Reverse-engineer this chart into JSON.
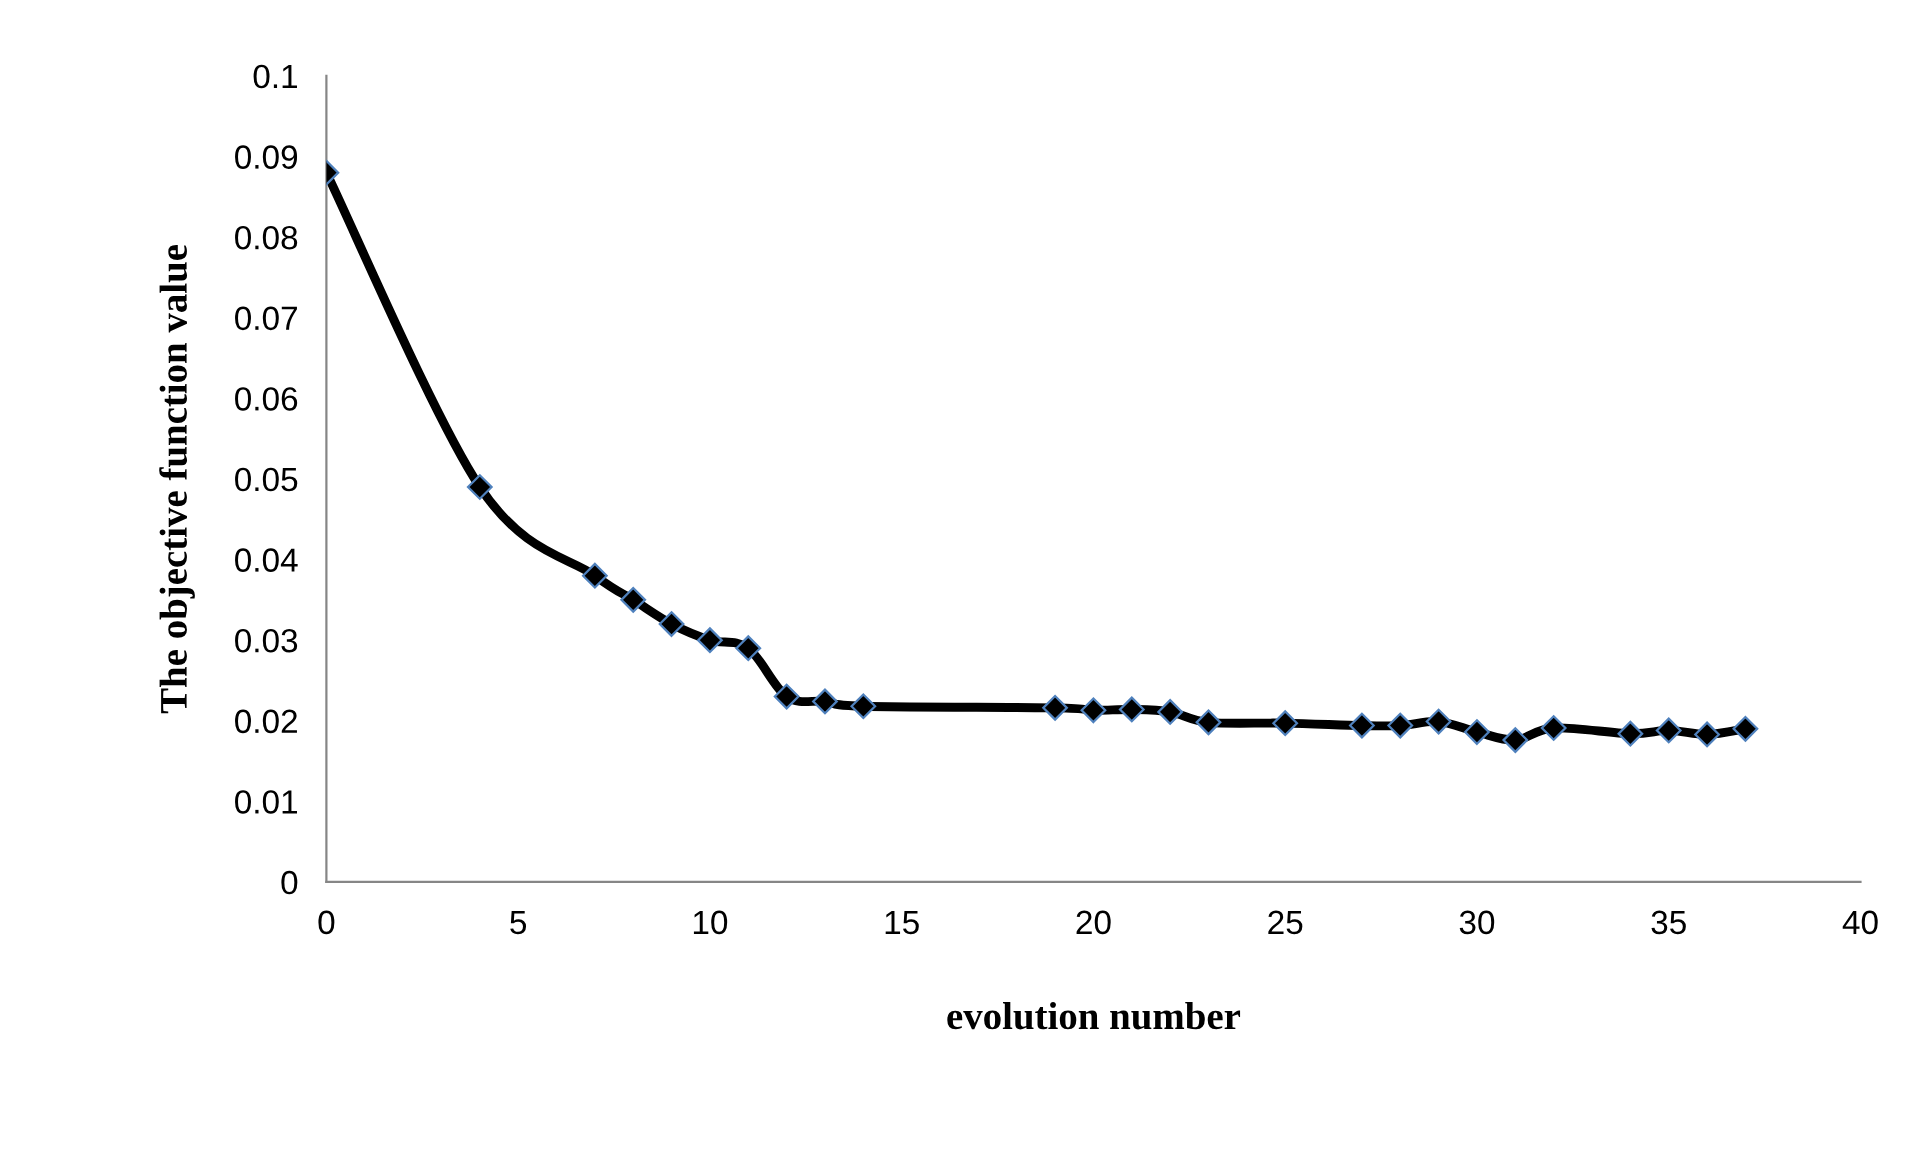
{
  "chart_data": {
    "type": "line",
    "xlabel": "evolution number",
    "ylabel": "The objective function value",
    "x": [
      0,
      4,
      7,
      8,
      9,
      10,
      11,
      12,
      13,
      14,
      19,
      20,
      21,
      22,
      23,
      25,
      27,
      28,
      29,
      30,
      31,
      32,
      34,
      35,
      36,
      37
    ],
    "series": [
      {
        "color": "#000000",
        "values": [
          0.088,
          0.049,
          0.038,
          0.035,
          0.032,
          0.03,
          0.029,
          0.023,
          0.0224,
          0.0218,
          0.0216,
          0.0213,
          0.0214,
          0.0211,
          0.0198,
          0.0197,
          0.0194,
          0.0194,
          0.0199,
          0.0186,
          0.0176,
          0.0191,
          0.0184,
          0.0188,
          0.0183,
          0.019
        ]
      }
    ],
    "xlim": [
      0,
      40
    ],
    "xticks": [
      0,
      5,
      10,
      15,
      20,
      25,
      30,
      35,
      40
    ],
    "ylim": [
      0,
      0.1
    ],
    "yticks": [
      0,
      0.01,
      0.02,
      0.03,
      0.04,
      0.05,
      0.06,
      0.07,
      0.08,
      0.09,
      0.1
    ],
    "grid": false,
    "legend": false,
    "marker": "diamond",
    "line_style": "solid"
  }
}
